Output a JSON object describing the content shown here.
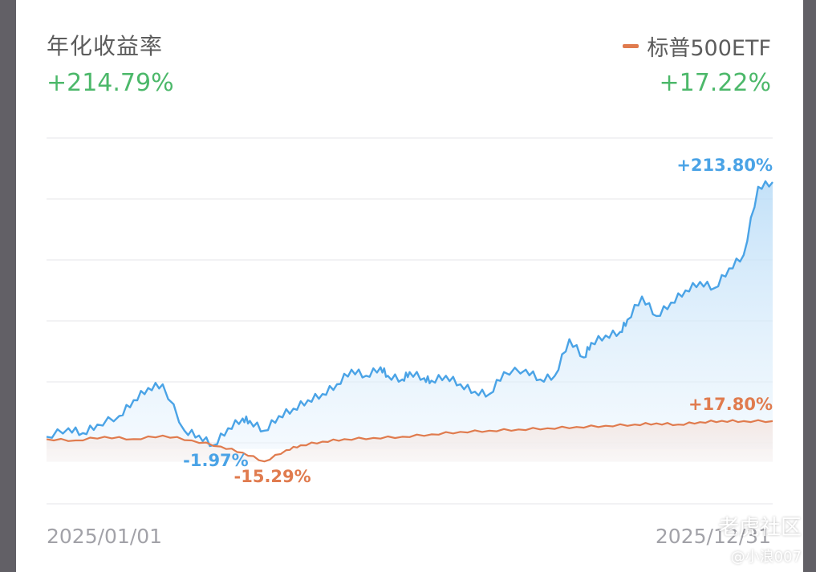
{
  "header": {
    "left_title": "年化收益率",
    "left_value": "+214.79%",
    "right_title": "标普500ETF",
    "right_value": "+17.22%"
  },
  "watermark": {
    "brand": "老虎社区",
    "user": "@小浪007"
  },
  "colors": {
    "positive": "#4cb86a",
    "portfolio": "#4aa3e6",
    "benchmark": "#e07b4e"
  },
  "chart_data": {
    "type": "area",
    "x_start_label": "2025/01/01",
    "x_end_label": "2025/12/31",
    "ylim": [
      -50,
      250
    ],
    "y_gridlines": [
      250,
      200,
      150,
      100,
      50,
      0,
      -50
    ],
    "series": [
      {
        "name": "",
        "color": "#4aa3e6",
        "fill": true,
        "x": [
          0,
          0.03,
          0.05,
          0.07,
          0.1,
          0.12,
          0.14,
          0.16,
          0.19,
          0.21,
          0.23,
          0.25,
          0.27,
          0.28,
          0.3,
          0.32,
          0.34,
          0.36,
          0.38,
          0.4,
          0.42,
          0.44,
          0.46,
          0.47,
          0.49,
          0.5,
          0.52,
          0.53,
          0.55,
          0.57,
          0.59,
          0.61,
          0.63,
          0.66,
          0.68,
          0.7,
          0.72,
          0.74,
          0.75,
          0.77,
          0.79,
          0.8,
          0.82,
          0.84,
          0.86,
          0.88,
          0.9,
          0.92,
          0.94,
          0.96,
          0.98,
          1
        ],
        "values": [
          5,
          12,
          8,
          15,
          22,
          35,
          45,
          48,
          10,
          6,
          -2,
          12,
          20,
          18,
          10,
          22,
          28,
          35,
          40,
          48,
          60,
          55,
          62,
          55,
          52,
          58,
          53,
          51,
          55,
          48,
          42,
          40,
          58,
          60,
          52,
          55,
          85,
          70,
          82,
          88,
          91,
          101,
          120,
          104,
          115,
          125,
          132,
          127,
          143,
          154,
          210,
          213.8
        ]
      },
      {
        "name": "标普500ETF",
        "color": "#e07b4e",
        "fill": false,
        "x": [
          0,
          0.04,
          0.08,
          0.12,
          0.16,
          0.2,
          0.24,
          0.27,
          0.3,
          0.33,
          0.35,
          0.38,
          0.41,
          0.45,
          0.49,
          0.53,
          0.57,
          0.61,
          0.65,
          0.69,
          0.73,
          0.77,
          0.81,
          0.84,
          0.87,
          0.9,
          0.93,
          0.96,
          1
        ],
        "values": [
          3,
          2,
          5,
          3,
          6,
          2,
          -3,
          -8,
          -15.29,
          -6,
          -2,
          1,
          3,
          4,
          5,
          7,
          9,
          10,
          11,
          12,
          13,
          14,
          15,
          16,
          15,
          17,
          18,
          17.8,
          17.8
        ]
      }
    ],
    "annotations": [
      {
        "text": "+213.80%",
        "series": 0,
        "at": "end",
        "color": "#4aa3e6"
      },
      {
        "text": "-1.97%",
        "series": 0,
        "at": "min",
        "color": "#4aa3e6"
      },
      {
        "text": "+17.80%",
        "series": 1,
        "at": "end",
        "color": "#e07b4e"
      },
      {
        "text": "-15.29%",
        "series": 1,
        "at": "min",
        "color": "#e07b4e"
      }
    ]
  }
}
